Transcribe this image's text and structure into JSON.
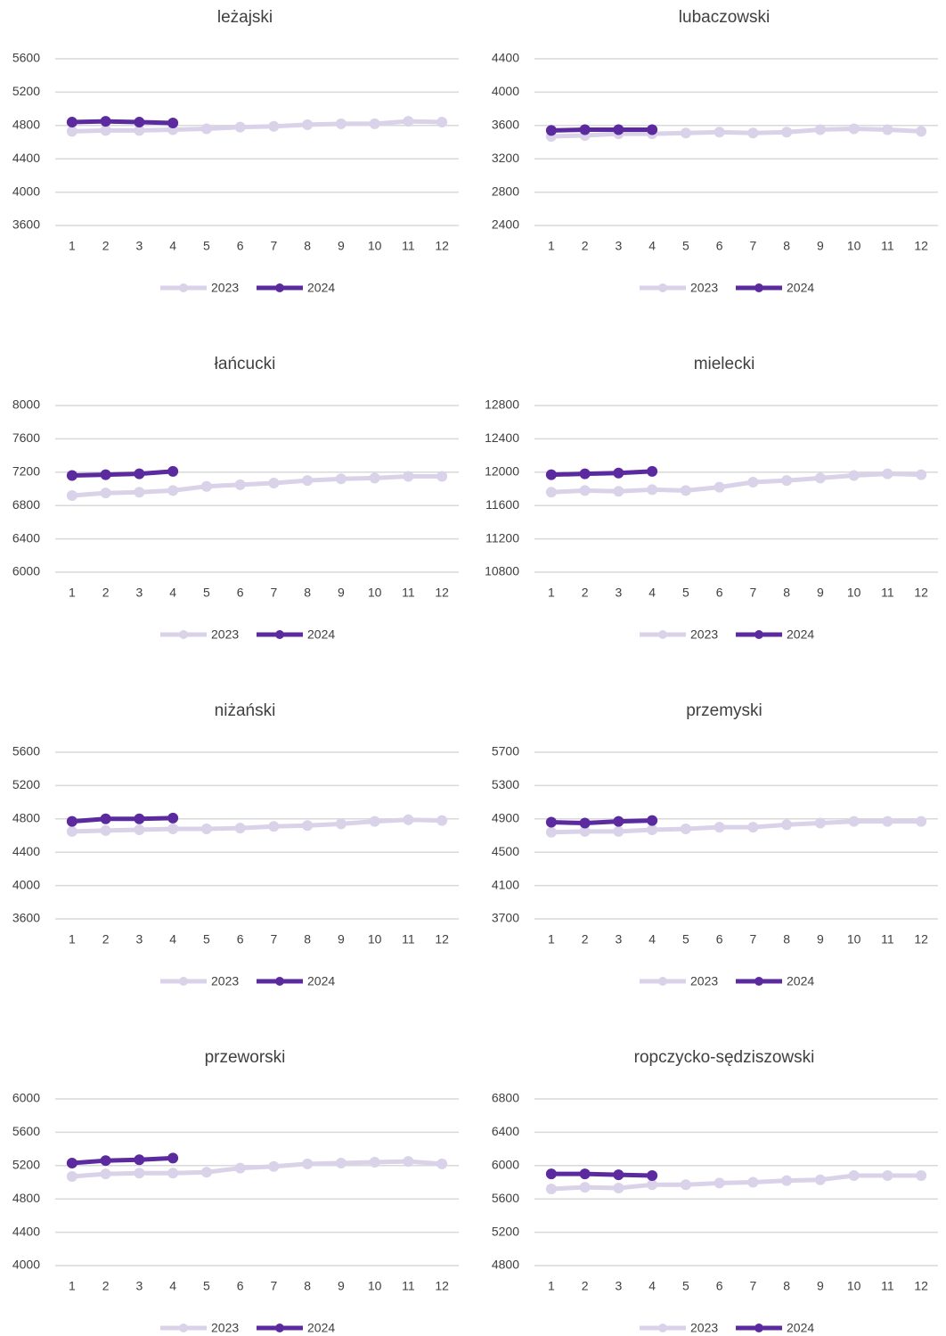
{
  "chart_data": [
    {
      "type": "line",
      "title": "leżajski",
      "categories": [
        1,
        2,
        3,
        4,
        5,
        6,
        7,
        8,
        9,
        10,
        11,
        12
      ],
      "ylim": [
        3600,
        5600
      ],
      "yticks": [
        3600,
        4000,
        4400,
        4800,
        5200,
        5600
      ],
      "grid": true,
      "legend": "bottom",
      "series": [
        {
          "name": "2023",
          "color": "#d9d2e9",
          "values": [
            4730,
            4740,
            4740,
            4750,
            4760,
            4780,
            4790,
            4810,
            4820,
            4820,
            4850,
            4840
          ]
        },
        {
          "name": "2024",
          "color": "#5b2a9e",
          "values": [
            4840,
            4850,
            4840,
            4830,
            null,
            null,
            null,
            null,
            null,
            null,
            null,
            null
          ]
        }
      ]
    },
    {
      "type": "line",
      "title": "lubaczowski",
      "categories": [
        1,
        2,
        3,
        4,
        5,
        6,
        7,
        8,
        9,
        10,
        11,
        12
      ],
      "ylim": [
        2400,
        4400
      ],
      "yticks": [
        2400,
        2800,
        3200,
        3600,
        4000,
        4400
      ],
      "grid": true,
      "legend": "bottom",
      "series": [
        {
          "name": "2023",
          "color": "#d9d2e9",
          "values": [
            3470,
            3480,
            3500,
            3500,
            3510,
            3520,
            3510,
            3520,
            3550,
            3560,
            3550,
            3530
          ]
        },
        {
          "name": "2024",
          "color": "#5b2a9e",
          "values": [
            3540,
            3550,
            3550,
            3550,
            null,
            null,
            null,
            null,
            null,
            null,
            null,
            null
          ]
        }
      ]
    },
    {
      "type": "line",
      "title": "łańcucki",
      "categories": [
        1,
        2,
        3,
        4,
        5,
        6,
        7,
        8,
        9,
        10,
        11,
        12
      ],
      "ylim": [
        6000,
        8000
      ],
      "yticks": [
        6000,
        6400,
        6800,
        7200,
        7600,
        8000
      ],
      "grid": true,
      "legend": "bottom",
      "series": [
        {
          "name": "2023",
          "color": "#d9d2e9",
          "values": [
            6920,
            6950,
            6960,
            6980,
            7030,
            7050,
            7070,
            7100,
            7120,
            7130,
            7150,
            7150
          ]
        },
        {
          "name": "2024",
          "color": "#5b2a9e",
          "values": [
            7160,
            7170,
            7180,
            7210,
            null,
            null,
            null,
            null,
            null,
            null,
            null,
            null
          ]
        }
      ]
    },
    {
      "type": "line",
      "title": "mielecki",
      "categories": [
        1,
        2,
        3,
        4,
        5,
        6,
        7,
        8,
        9,
        10,
        11,
        12
      ],
      "ylim": [
        10800,
        12800
      ],
      "yticks": [
        10800,
        11200,
        11600,
        12000,
        12400,
        12800
      ],
      "grid": true,
      "legend": "bottom",
      "series": [
        {
          "name": "2023",
          "color": "#d9d2e9",
          "values": [
            11760,
            11780,
            11770,
            11790,
            11780,
            11820,
            11880,
            11900,
            11930,
            11960,
            11980,
            11970
          ]
        },
        {
          "name": "2024",
          "color": "#5b2a9e",
          "values": [
            11970,
            11980,
            11990,
            12010,
            null,
            null,
            null,
            null,
            null,
            null,
            null,
            null
          ]
        }
      ]
    },
    {
      "type": "line",
      "title": "niżański",
      "categories": [
        1,
        2,
        3,
        4,
        5,
        6,
        7,
        8,
        9,
        10,
        11,
        12
      ],
      "ylim": [
        3600,
        5600
      ],
      "yticks": [
        3600,
        4000,
        4400,
        4800,
        5200,
        5600
      ],
      "grid": true,
      "legend": "bottom",
      "series": [
        {
          "name": "2023",
          "color": "#d9d2e9",
          "values": [
            4650,
            4660,
            4670,
            4680,
            4680,
            4690,
            4710,
            4720,
            4740,
            4770,
            4790,
            4780
          ]
        },
        {
          "name": "2024",
          "color": "#5b2a9e",
          "values": [
            4770,
            4800,
            4800,
            4810,
            null,
            null,
            null,
            null,
            null,
            null,
            null,
            null
          ]
        }
      ]
    },
    {
      "type": "line",
      "title": "przemyski",
      "categories": [
        1,
        2,
        3,
        4,
        5,
        6,
        7,
        8,
        9,
        10,
        11,
        12
      ],
      "ylim": [
        3700,
        5700
      ],
      "yticks": [
        3700,
        4100,
        4500,
        4900,
        5300,
        5700
      ],
      "grid": true,
      "legend": "bottom",
      "series": [
        {
          "name": "2023",
          "color": "#d9d2e9",
          "values": [
            4740,
            4750,
            4750,
            4770,
            4780,
            4800,
            4800,
            4830,
            4850,
            4870,
            4870,
            4870
          ]
        },
        {
          "name": "2024",
          "color": "#5b2a9e",
          "values": [
            4860,
            4850,
            4870,
            4880,
            null,
            null,
            null,
            null,
            null,
            null,
            null,
            null
          ]
        }
      ]
    },
    {
      "type": "line",
      "title": "przeworski",
      "categories": [
        1,
        2,
        3,
        4,
        5,
        6,
        7,
        8,
        9,
        10,
        11,
        12
      ],
      "ylim": [
        4000,
        6000
      ],
      "yticks": [
        4000,
        4400,
        4800,
        5200,
        5600,
        6000
      ],
      "grid": true,
      "legend": "bottom",
      "series": [
        {
          "name": "2023",
          "color": "#d9d2e9",
          "values": [
            5070,
            5100,
            5110,
            5110,
            5120,
            5170,
            5190,
            5220,
            5230,
            5240,
            5250,
            5220
          ]
        },
        {
          "name": "2024",
          "color": "#5b2a9e",
          "values": [
            5230,
            5260,
            5270,
            5290,
            null,
            null,
            null,
            null,
            null,
            null,
            null,
            null
          ]
        }
      ]
    },
    {
      "type": "line",
      "title": "ropczycko-sędziszowski",
      "categories": [
        1,
        2,
        3,
        4,
        5,
        6,
        7,
        8,
        9,
        10,
        11,
        12
      ],
      "ylim": [
        4800,
        6800
      ],
      "yticks": [
        4800,
        5200,
        5600,
        6000,
        6400,
        6800
      ],
      "grid": true,
      "legend": "bottom",
      "series": [
        {
          "name": "2023",
          "color": "#d9d2e9",
          "values": [
            5720,
            5740,
            5730,
            5770,
            5770,
            5790,
            5800,
            5820,
            5830,
            5880,
            5880,
            5880
          ]
        },
        {
          "name": "2024",
          "color": "#5b2a9e",
          "values": [
            5900,
            5900,
            5890,
            5880,
            null,
            null,
            null,
            null,
            null,
            null,
            null,
            null
          ]
        }
      ]
    }
  ]
}
